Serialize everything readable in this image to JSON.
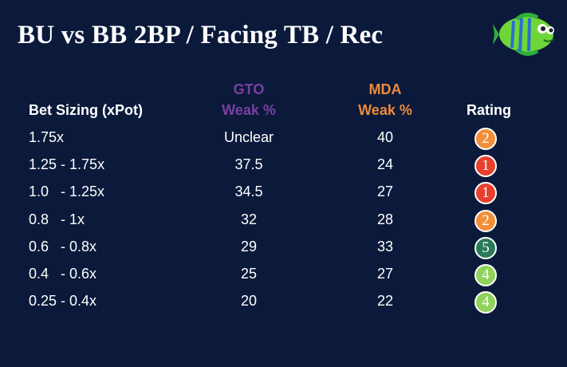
{
  "title": "BU vs BB 2BP / Facing TB / Rec",
  "headers": {
    "bet_sizing": "Bet Sizing (xPot)",
    "gto_line1": "GTO",
    "gto_line2": "Weak %",
    "mda_line1": "MDA",
    "mda_line2": "Weak %",
    "rating": "Rating"
  },
  "colors": {
    "background": "#0b1a3b",
    "gto_header": "#7b3fa0",
    "mda_header": "#f0893a",
    "rating_1": "#e8402e",
    "rating_2": "#f2903a",
    "rating_4": "#8fd35a",
    "rating_5": "#2a7a5a"
  },
  "logo": "fish-logo-icon",
  "rows": [
    {
      "size": "1.75x",
      "gto": "Unclear",
      "mda": "40",
      "rating": "2",
      "rating_color": "#f2903a"
    },
    {
      "size": "1.25 - 1.75x",
      "gto": "37.5",
      "mda": "24",
      "rating": "1",
      "rating_color": "#e8402e"
    },
    {
      "size": "1.0   - 1.25x",
      "gto": "34.5",
      "mda": "27",
      "rating": "1",
      "rating_color": "#e8402e"
    },
    {
      "size": "0.8   - 1x",
      "gto": "32",
      "mda": "28",
      "rating": "2",
      "rating_color": "#f2903a"
    },
    {
      "size": "0.6   - 0.8x",
      "gto": "29",
      "mda": "33",
      "rating": "5",
      "rating_color": "#2a7a5a"
    },
    {
      "size": "0.4   - 0.6x",
      "gto": "25",
      "mda": "27",
      "rating": "4",
      "rating_color": "#8fd35a"
    },
    {
      "size": "0.25 - 0.4x",
      "gto": "20",
      "mda": "22",
      "rating": "4",
      "rating_color": "#8fd35a"
    }
  ]
}
